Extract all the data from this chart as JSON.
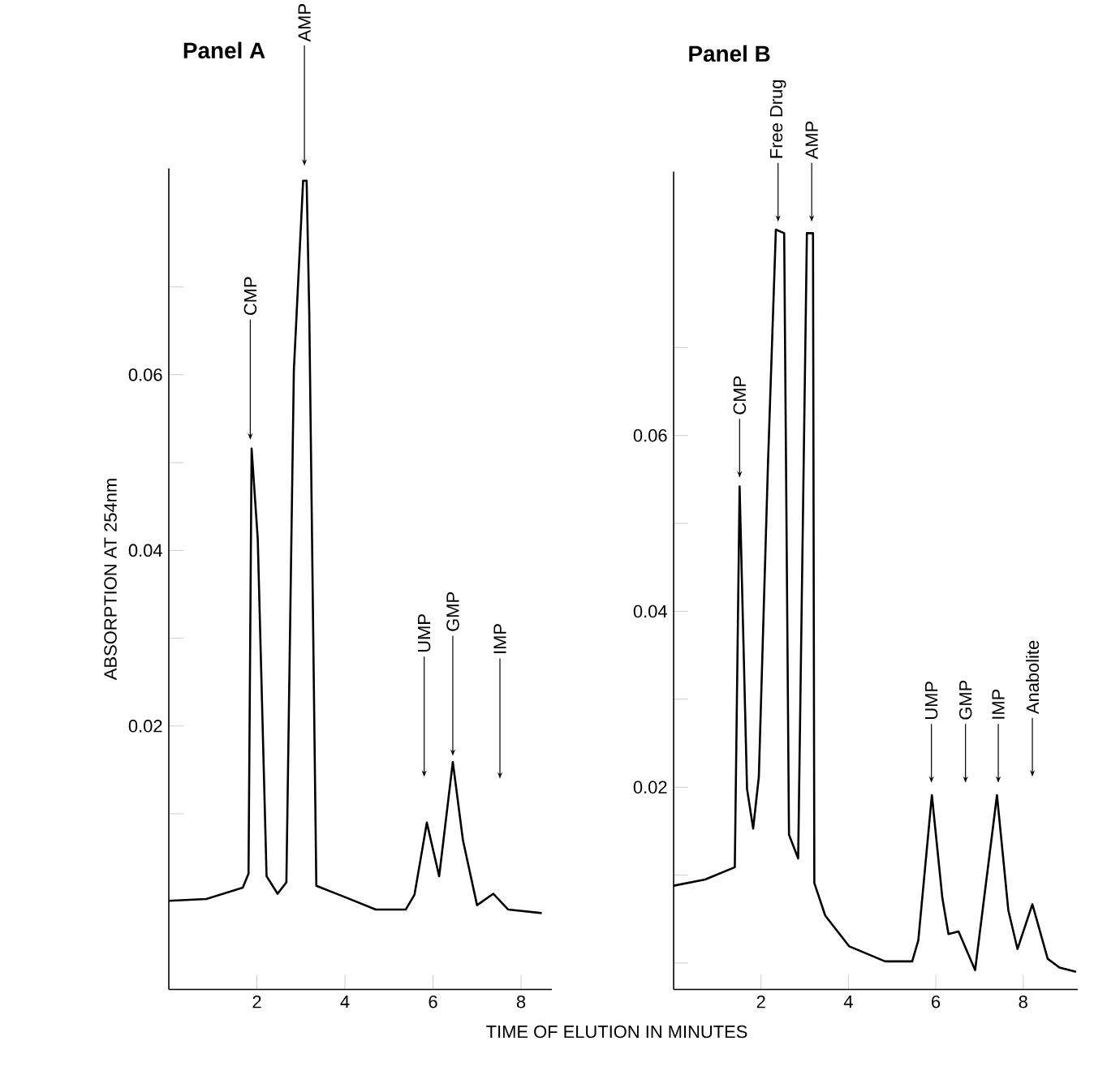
{
  "chart_data": [
    {
      "type": "line",
      "title": "Panel A",
      "ylabel": "ABSORPTION AT 254nm",
      "xlabel": "TIME OF ELUTION IN MINUTES",
      "color": "#000000",
      "x": [
        0,
        0.85,
        1.68,
        1.81,
        1.88,
        2.02,
        2.22,
        2.47,
        2.67,
        2.84,
        3.05,
        3.13,
        3.19,
        3.35,
        4.01,
        4.7,
        5.38,
        5.58,
        5.86,
        6.14,
        6.45,
        6.68,
        7.0,
        7.37,
        7.71,
        8.47
      ],
      "values": [
        0.0001,
        0.0003,
        0.0016,
        0.0032,
        0.0516,
        0.0413,
        0.0029,
        0.0009,
        0.0022,
        0.0605,
        0.0821,
        0.0821,
        0.067,
        0.0018,
        0.0005,
        -0.0009,
        -0.0009,
        0.0008,
        0.009,
        0.0029,
        0.0159,
        0.007,
        -0.0004,
        0.0009,
        -0.0009,
        -0.0013
      ],
      "xlim": [
        0,
        8.7
      ],
      "ylim": [
        -0.01,
        0.0835
      ],
      "xticks": [
        2,
        4,
        6,
        8
      ],
      "yticks": [
        {
          "value": 0.01,
          "label": null
        },
        0.02,
        {
          "value": 0.03,
          "label": null
        },
        0.04,
        {
          "value": 0.05,
          "label": null
        },
        0.06,
        {
          "value": 0.07,
          "label": null
        }
      ],
      "annotations": [
        {
          "text": "CMP",
          "x": 1.85,
          "y": 0.0526
        },
        {
          "text": "AMP",
          "x": 3.08,
          "y": 0.0838
        },
        {
          "text": "UMP",
          "x": 5.8,
          "y": 0.0142
        },
        {
          "text": "GMP",
          "x": 6.45,
          "y": 0.0166
        },
        {
          "text": "IMP",
          "x": 7.52,
          "y": 0.014
        }
      ]
    },
    {
      "type": "line",
      "title": "Panel B",
      "color": "#000000",
      "x": [
        0,
        0.72,
        1.4,
        1.51,
        1.68,
        1.82,
        1.95,
        2.16,
        2.34,
        2.53,
        2.64,
        2.85,
        3.05,
        3.19,
        3.22,
        3.47,
        4.02,
        4.84,
        5.46,
        5.6,
        5.91,
        6.15,
        6.29,
        6.52,
        6.9,
        7.4,
        7.66,
        7.87,
        8.21,
        8.56,
        8.83,
        9.21
      ],
      "values": [
        0.0088,
        0.0095,
        0.0109,
        0.0542,
        0.0198,
        0.0153,
        0.0212,
        0.0569,
        0.0834,
        0.083,
        0.0146,
        0.0119,
        0.083,
        0.083,
        0.0091,
        0.0054,
        0.0019,
        0.0002,
        0.0002,
        0.0026,
        0.0191,
        0.0074,
        0.0033,
        0.0036,
        -0.0008,
        0.0191,
        0.006,
        0.0016,
        0.0067,
        0.0005,
        -0.0005,
        -0.001
      ],
      "xlim": [
        0,
        9.25
      ],
      "ylim": [
        -0.003,
        0.09
      ],
      "xticks": [
        2,
        4,
        6,
        8
      ],
      "yticks": [
        {
          "value": 0,
          "label": null
        },
        {
          "value": 0.01,
          "label": null
        },
        0.02,
        {
          "value": 0.03,
          "label": null
        },
        0.04,
        {
          "value": 0.05,
          "label": null
        },
        0.06,
        {
          "value": 0.07,
          "label": null
        }
      ],
      "annotations": [
        {
          "text": "CMP",
          "x": 1.51,
          "y": 0.0552
        },
        {
          "text": "Free Drug",
          "x": 2.39,
          "y": 0.0843
        },
        {
          "text": "AMP",
          "x": 3.16,
          "y": 0.0843
        },
        {
          "text": "UMP",
          "x": 5.9,
          "y": 0.0205
        },
        {
          "text": "GMP",
          "x": 6.68,
          "y": 0.0205
        },
        {
          "text": "IMP",
          "x": 7.43,
          "y": 0.0205
        },
        {
          "text": "Anabolite",
          "x": 8.21,
          "y": 0.0212
        }
      ]
    }
  ]
}
